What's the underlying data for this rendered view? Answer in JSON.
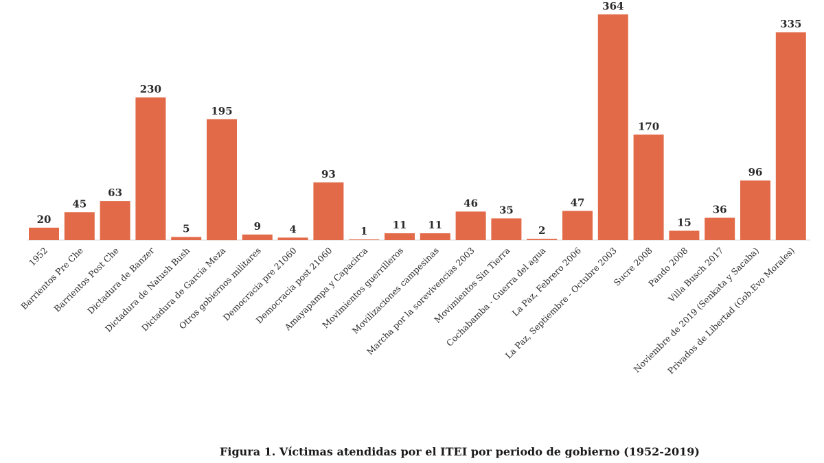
{
  "chart_data": {
    "type": "bar",
    "title": "",
    "xlabel": "",
    "ylabel": "",
    "ylim": [
      0,
      364
    ],
    "grid": false,
    "legend": "none",
    "bar_color": "#e26a48",
    "categories": [
      "1952",
      "Barrientos Pre Che",
      "Barrientos Post Che",
      "Dictadura de Banzer",
      "Dictadura de Natush Bush",
      "Dictadura de García Meza",
      "Otros gobiernos militares",
      "Democracia pre 21060",
      "Democracia post 21060",
      "Amayapampa y Capacirca",
      "Movimientos guerrilleros",
      "Movilizaciones campesinas",
      "Marcha por la sorevivencias 2003",
      "Movimientos Sin Tierra",
      "Cochabamba - Guerra del agua",
      "La Paz, Febrero 2006",
      "La Paz, Septiembre - Octubre 2003",
      "Sucre 2008",
      "Pando 2008",
      "Villa Busch 2017",
      "Noviembre de 2019 (Senkata y Sacaba)",
      "Privados de Libertad (Gob.Evo Morales)"
    ],
    "values": [
      20,
      45,
      63,
      230,
      5,
      195,
      9,
      4,
      93,
      1,
      11,
      11,
      46,
      35,
      2,
      47,
      364,
      170,
      15,
      36,
      96,
      335
    ]
  },
  "caption": "Figura 1. Víctimas atendidas por el ITEI por periodo de gobierno (1952-2019)"
}
